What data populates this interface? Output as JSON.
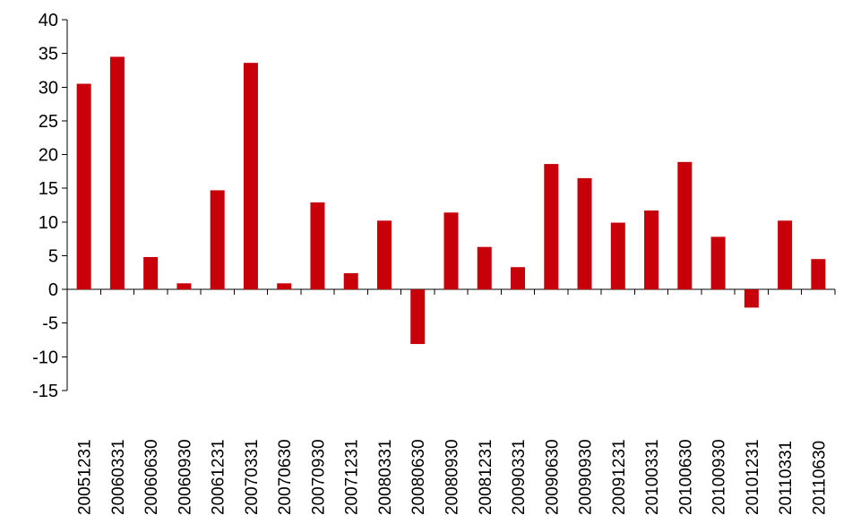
{
  "chart_data": {
    "type": "bar",
    "title": "",
    "xlabel": "",
    "ylabel": "",
    "ylim": [
      -15,
      40
    ],
    "y_ticks": [
      40,
      35,
      30,
      25,
      20,
      15,
      10,
      5,
      0,
      -5,
      -10,
      -15
    ],
    "y_tick_labels": [
      "40",
      "35",
      "30",
      "25",
      "20",
      "15",
      "10",
      "5",
      "0",
      "-5",
      "-10",
      "-15"
    ],
    "grid": false,
    "legend": "none",
    "bar_color": "#C8000A",
    "categories": [
      "20051231",
      "20060331",
      "20060630",
      "20060930",
      "20061231",
      "20070331",
      "20070630",
      "20070930",
      "20071231",
      "20080331",
      "20080630",
      "20080930",
      "20081231",
      "20090331",
      "20090630",
      "20090930",
      "20091231",
      "20100331",
      "20100630",
      "20100930",
      "20101231",
      "20110331",
      "20110630"
    ],
    "values": [
      30.5,
      34.5,
      4.8,
      0.9,
      14.7,
      33.6,
      0.9,
      12.9,
      2.4,
      10.2,
      -8.1,
      11.4,
      6.3,
      3.3,
      18.6,
      16.5,
      9.9,
      11.7,
      18.9,
      7.8,
      -2.7,
      10.2,
      4.5
    ]
  }
}
